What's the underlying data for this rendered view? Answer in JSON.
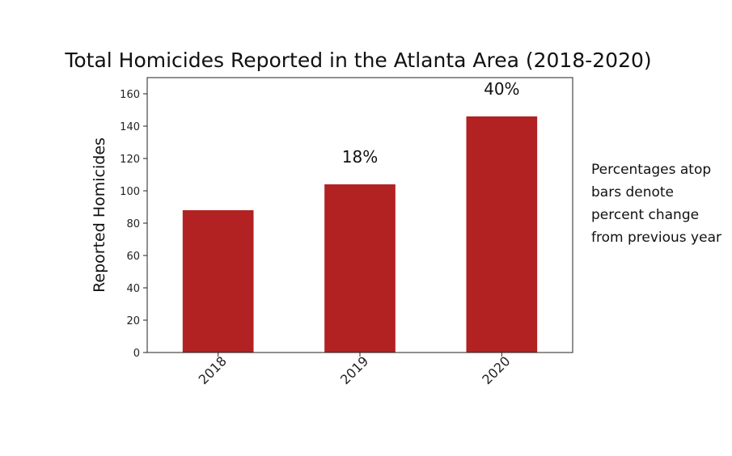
{
  "chart_data": {
    "type": "bar",
    "title": "Total Homicides Reported in the Atlanta Area (2018-2020)",
    "xlabel": "",
    "ylabel": "Reported Homicides",
    "categories": [
      "2018",
      "2019",
      "2020"
    ],
    "values": [
      88,
      104,
      146
    ],
    "data_labels": [
      "",
      "18%",
      "40%"
    ],
    "ylim": [
      0,
      170
    ],
    "yticks": [
      0,
      20,
      40,
      60,
      80,
      100,
      120,
      140,
      160
    ],
    "grid": false,
    "bar_color": "#b22222",
    "annotation": "Percentages atop bars denote percent change from previous year"
  }
}
